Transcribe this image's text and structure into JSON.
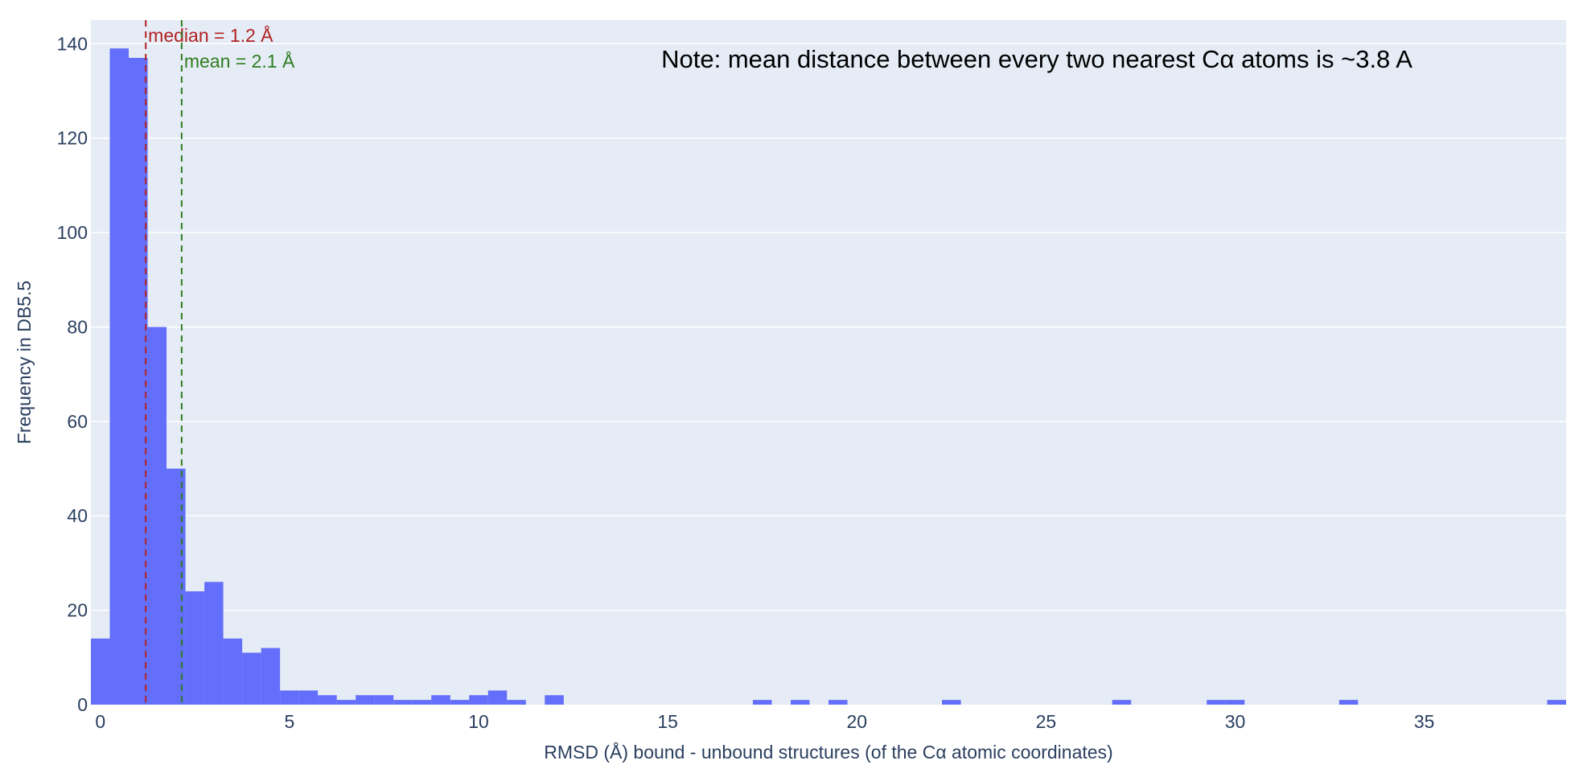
{
  "chart_data": {
    "type": "bar",
    "subtype": "histogram",
    "xlabel": "RMSD (Å) bound - unbound structures (of the Cα atomic coordinates)",
    "ylabel": "Frequency in DB5.5",
    "xlim": [
      -0.25,
      38.75
    ],
    "ylim": [
      0,
      145
    ],
    "x_ticks": [
      0,
      5,
      10,
      15,
      20,
      25,
      30,
      35
    ],
    "y_ticks": [
      0,
      20,
      40,
      60,
      80,
      100,
      120,
      140
    ],
    "bin_width": 0.5,
    "grid": true,
    "background_color": "#e5ecf6",
    "bar_color": "#636efa",
    "bins": [
      {
        "x0": -0.25,
        "x1": 0.25,
        "count": 14
      },
      {
        "x0": 0.25,
        "x1": 0.75,
        "count": 139
      },
      {
        "x0": 0.75,
        "x1": 1.25,
        "count": 137
      },
      {
        "x0": 1.25,
        "x1": 1.75,
        "count": 80
      },
      {
        "x0": 1.75,
        "x1": 2.25,
        "count": 50
      },
      {
        "x0": 2.25,
        "x1": 2.75,
        "count": 24
      },
      {
        "x0": 2.75,
        "x1": 3.25,
        "count": 26
      },
      {
        "x0": 3.25,
        "x1": 3.75,
        "count": 14
      },
      {
        "x0": 3.75,
        "x1": 4.25,
        "count": 11
      },
      {
        "x0": 4.25,
        "x1": 4.75,
        "count": 12
      },
      {
        "x0": 4.75,
        "x1": 5.25,
        "count": 3
      },
      {
        "x0": 5.25,
        "x1": 5.75,
        "count": 3
      },
      {
        "x0": 5.75,
        "x1": 6.25,
        "count": 2
      },
      {
        "x0": 6.25,
        "x1": 6.75,
        "count": 1
      },
      {
        "x0": 6.75,
        "x1": 7.25,
        "count": 2
      },
      {
        "x0": 7.25,
        "x1": 7.75,
        "count": 2
      },
      {
        "x0": 7.75,
        "x1": 8.25,
        "count": 1
      },
      {
        "x0": 8.25,
        "x1": 8.75,
        "count": 1
      },
      {
        "x0": 8.75,
        "x1": 9.25,
        "count": 2
      },
      {
        "x0": 9.25,
        "x1": 9.75,
        "count": 1
      },
      {
        "x0": 9.75,
        "x1": 10.25,
        "count": 2
      },
      {
        "x0": 10.25,
        "x1": 10.75,
        "count": 3
      },
      {
        "x0": 10.75,
        "x1": 11.25,
        "count": 1
      },
      {
        "x0": 11.75,
        "x1": 12.25,
        "count": 2
      },
      {
        "x0": 17.25,
        "x1": 17.75,
        "count": 1
      },
      {
        "x0": 18.25,
        "x1": 18.75,
        "count": 1
      },
      {
        "x0": 19.25,
        "x1": 19.75,
        "count": 1
      },
      {
        "x0": 22.25,
        "x1": 22.75,
        "count": 1
      },
      {
        "x0": 26.75,
        "x1": 27.25,
        "count": 1
      },
      {
        "x0": 29.25,
        "x1": 29.75,
        "count": 1
      },
      {
        "x0": 29.75,
        "x1": 30.25,
        "count": 1
      },
      {
        "x0": 32.75,
        "x1": 33.25,
        "count": 1
      },
      {
        "x0": 38.25,
        "x1": 38.75,
        "count": 1
      }
    ],
    "reference_lines": [
      {
        "label": "median = 1.2 Å",
        "x": 1.2,
        "color": "#b22222"
      },
      {
        "label": "mean = 2.1 Å",
        "x": 2.15,
        "color": "#2e7d1f"
      }
    ],
    "annotation": "Note: mean distance between every two nearest Cα atoms is ~3.8 A"
  }
}
